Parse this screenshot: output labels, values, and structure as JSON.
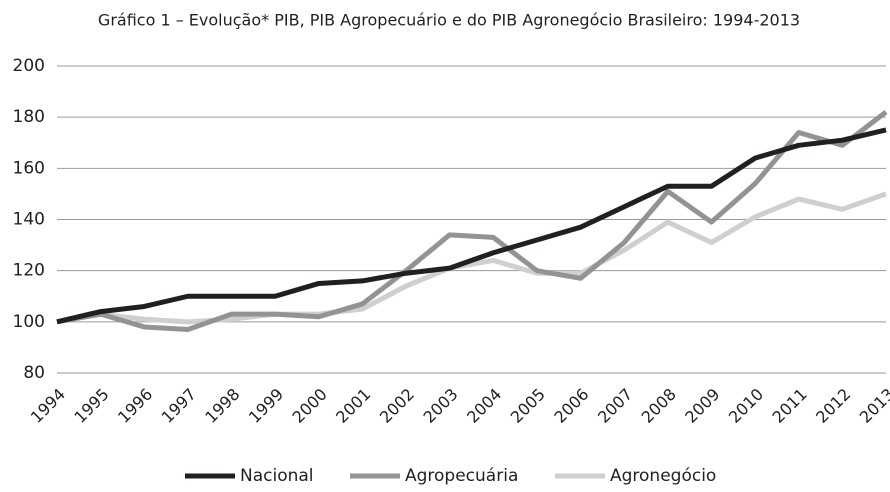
{
  "chart_data": {
    "type": "line",
    "title": "Gráfico 1 – Evolução* PIB, PIB Agropecuário e do PIB Agronegócio Brasileiro: 1994-2013",
    "categories": [
      "1994",
      "1995",
      "1996",
      "1997",
      "1998",
      "1999",
      "2000",
      "2001",
      "2002",
      "2003",
      "2004",
      "2005",
      "2006",
      "2007",
      "2008",
      "2009",
      "2010",
      "2011",
      "2012",
      "2013"
    ],
    "series": [
      {
        "name": "Nacional",
        "color": "#231f20",
        "values": [
          100,
          104,
          106,
          110,
          110,
          110,
          115,
          116,
          119,
          121,
          127,
          132,
          137,
          145,
          153,
          153,
          164,
          169,
          171,
          175
        ]
      },
      {
        "name": "Agropecuária",
        "color": "#939393",
        "values": [
          100,
          103,
          98,
          97,
          103,
          103,
          102,
          107,
          120,
          134,
          133,
          120,
          117,
          131,
          151,
          139,
          154,
          174,
          169,
          182
        ]
      },
      {
        "name": "Agronegócio",
        "color": "#cfcfcf",
        "values": [
          100,
          103,
          101,
          100,
          101,
          103,
          103,
          105,
          114,
          121,
          124,
          119,
          119,
          128,
          139,
          131,
          141,
          148,
          144,
          150
        ]
      }
    ],
    "ylim": [
      80,
      200
    ],
    "yticks": [
      80,
      100,
      120,
      140,
      160,
      180,
      200
    ],
    "grid": true,
    "legend": "bottom"
  }
}
